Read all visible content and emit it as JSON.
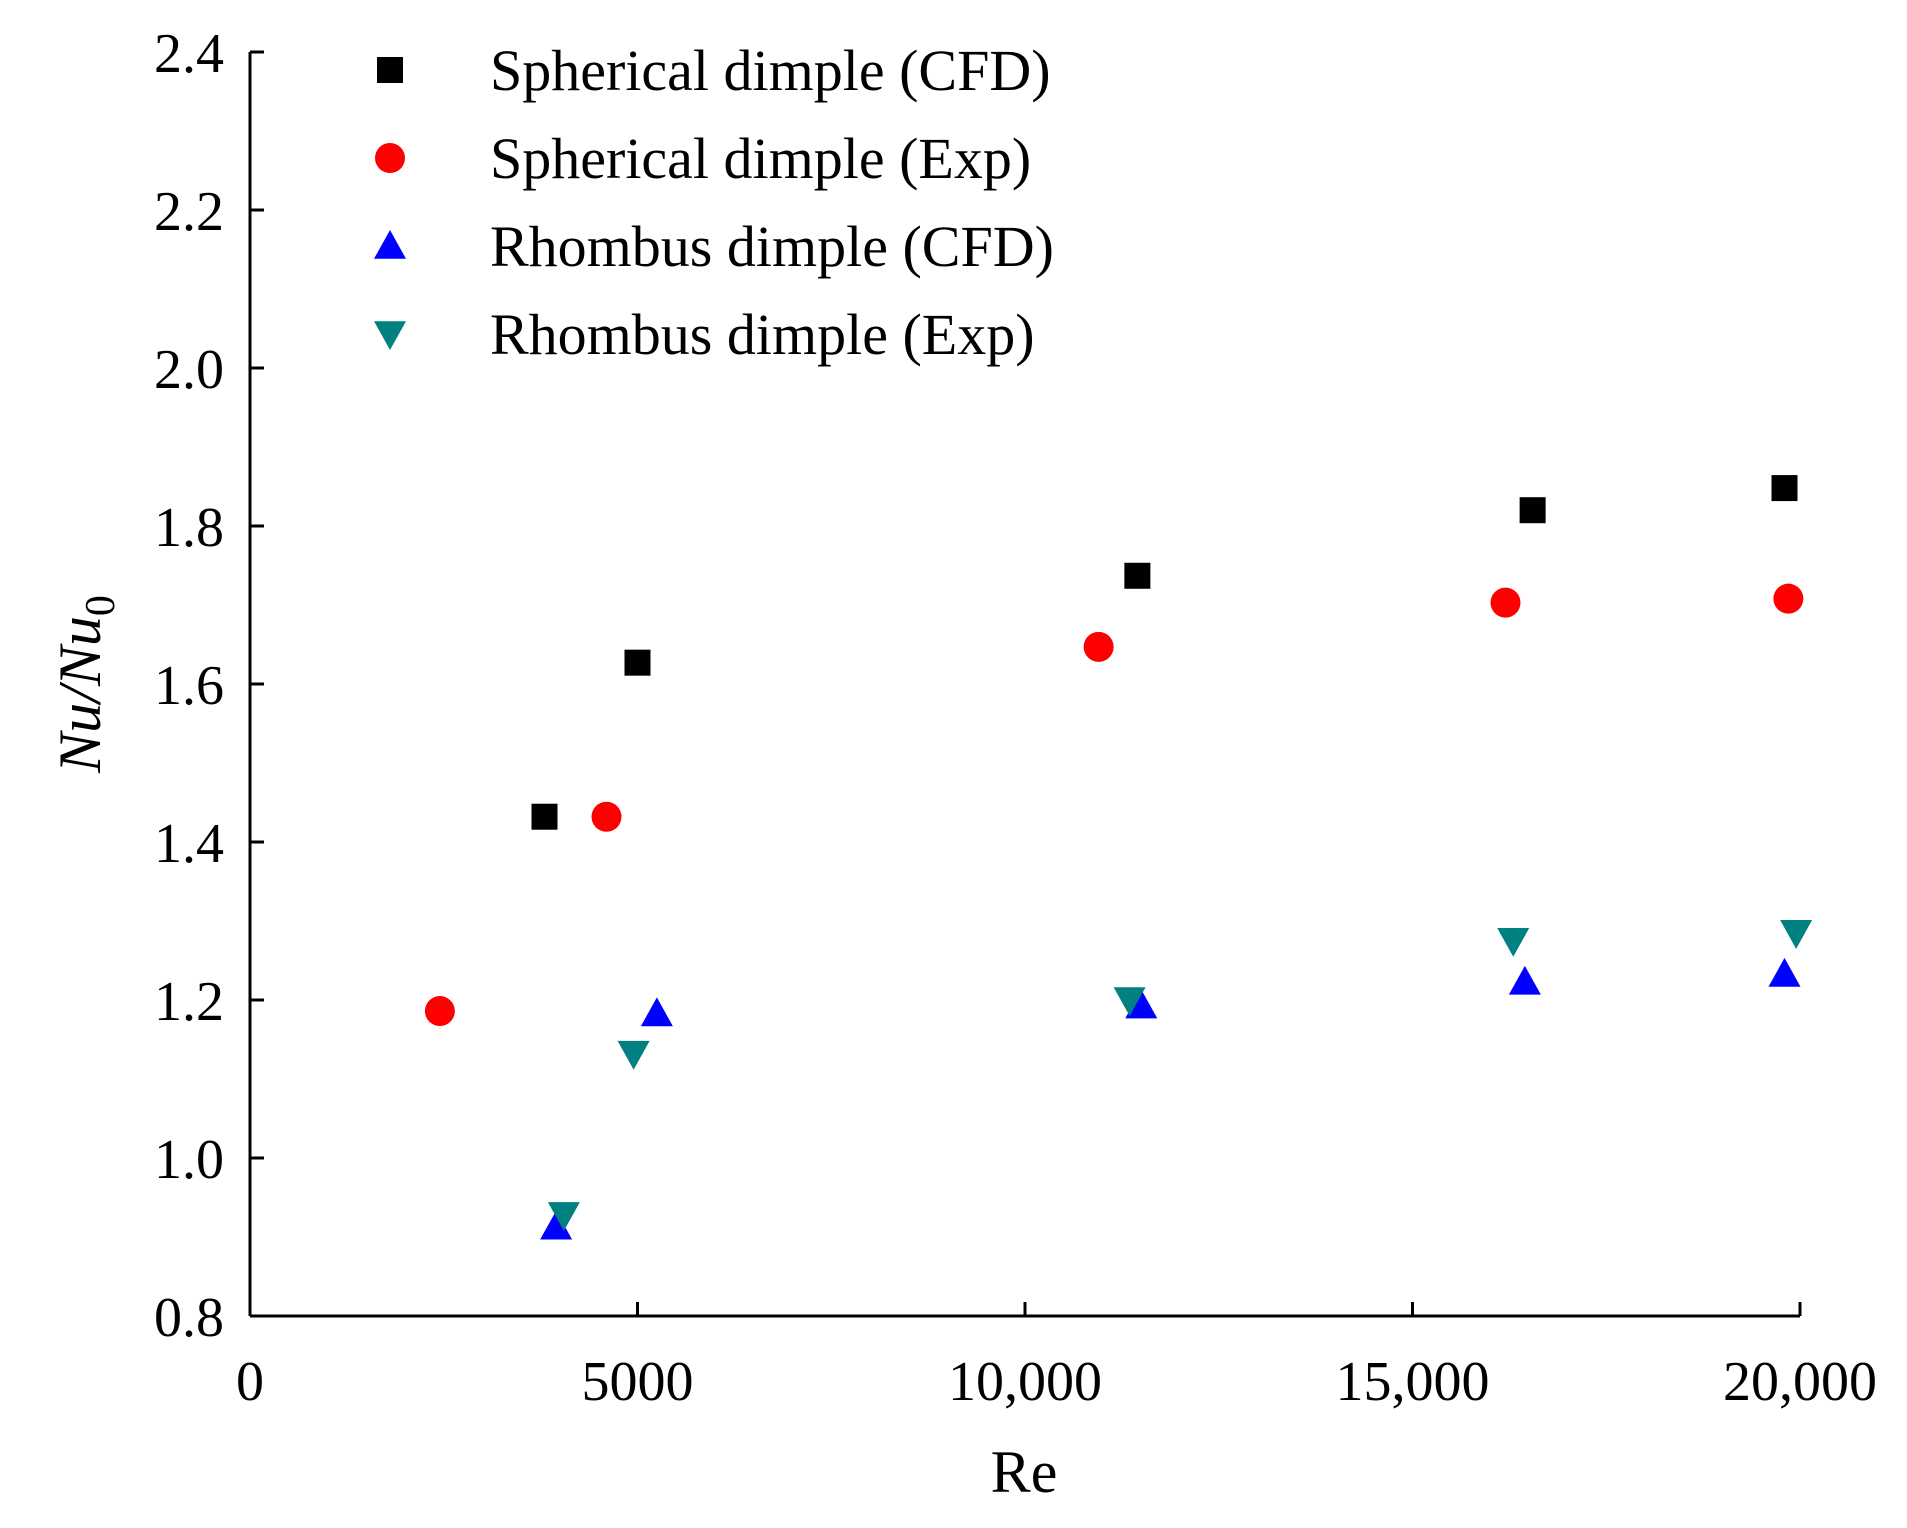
{
  "chart_data": {
    "type": "scatter",
    "title": "",
    "xlabel": "Re",
    "ylabel": {
      "base": "Nu/Nu",
      "subscript": "0"
    },
    "xlim": [
      0,
      20000
    ],
    "ylim": [
      0.8,
      2.4
    ],
    "xticks": [
      0,
      5000,
      10000,
      15000,
      20000
    ],
    "xtick_labels": [
      "0",
      "5000",
      "10,000",
      "15,000",
      "20,000"
    ],
    "yticks": [
      0.8,
      1.0,
      1.2,
      1.4,
      1.6,
      1.8,
      2.0,
      2.2,
      2.4
    ],
    "ytick_labels": [
      "0.8",
      "1.0",
      "1.2",
      "1.4",
      "1.6",
      "1.8",
      "2.0",
      "2.2",
      "2.4"
    ],
    "grid": false,
    "legend_position": "top-left",
    "series": [
      {
        "name": "Spherical dimple (CFD)",
        "marker": "square",
        "color": "#000000",
        "x": [
          3800,
          5000,
          11450,
          16550,
          19800
        ],
        "y": [
          1.432,
          1.627,
          1.737,
          1.82,
          1.848
        ]
      },
      {
        "name": "Spherical dimple (Exp)",
        "marker": "circle",
        "color": "#ff0000",
        "x": [
          2450,
          4600,
          10950,
          16200,
          19850
        ],
        "y": [
          1.186,
          1.432,
          1.647,
          1.703,
          1.708
        ]
      },
      {
        "name": "Rhombus dimple (CFD)",
        "marker": "triangle-up",
        "color": "#0000ff",
        "x": [
          3950,
          5250,
          11500,
          16450,
          19800
        ],
        "y": [
          0.913,
          1.183,
          1.193,
          1.223,
          1.233
        ]
      },
      {
        "name": "Rhombus dimple (Exp)",
        "marker": "triangle-down",
        "color": "#008080",
        "x": [
          4050,
          4950,
          11350,
          16300,
          19950
        ],
        "y": [
          0.928,
          1.132,
          1.2,
          1.275,
          1.285
        ]
      }
    ]
  }
}
